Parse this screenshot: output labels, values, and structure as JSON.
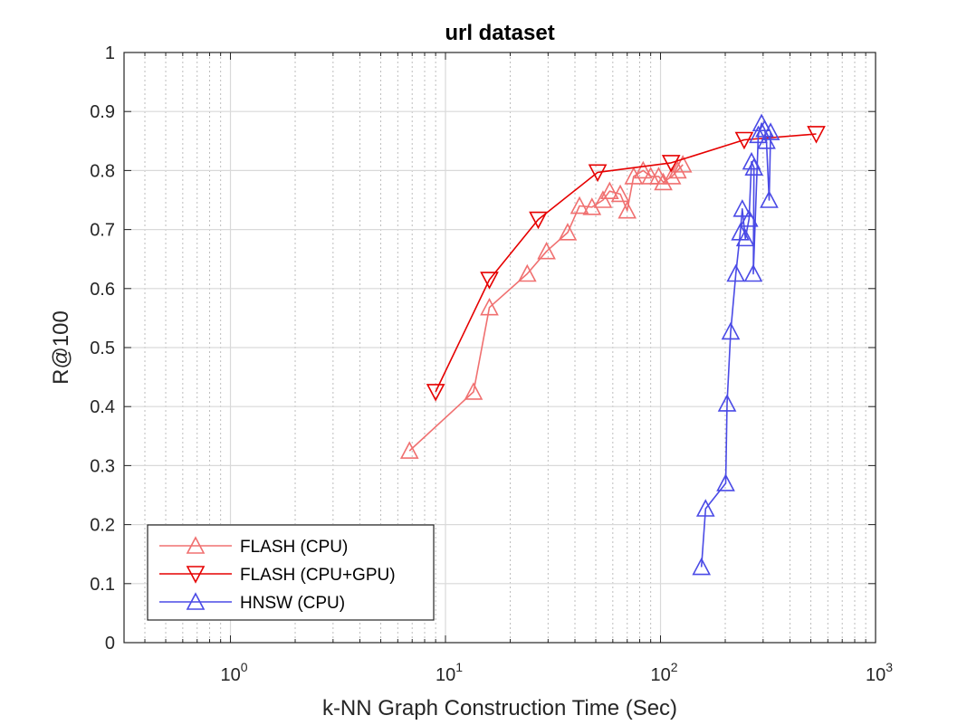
{
  "chart_data": {
    "type": "line",
    "title": "url dataset",
    "xlabel": "k-NN Graph Construction Time (Sec)",
    "ylabel": "R@100",
    "x_scale": "log",
    "xlim": [
      0.32,
      1000
    ],
    "ylim": [
      0,
      1
    ],
    "grid": true,
    "legend_position": "bottom-left",
    "x_ticks": [
      {
        "value": 1,
        "base": "10",
        "exp": "0"
      },
      {
        "value": 10,
        "base": "10",
        "exp": "1"
      },
      {
        "value": 100,
        "base": "10",
        "exp": "2"
      },
      {
        "value": 1000,
        "base": "10",
        "exp": "3"
      }
    ],
    "y_ticks": [
      {
        "value": 0,
        "label": "0"
      },
      {
        "value": 0.1,
        "label": "0.1"
      },
      {
        "value": 0.2,
        "label": "0.2"
      },
      {
        "value": 0.3,
        "label": "0.3"
      },
      {
        "value": 0.4,
        "label": "0.4"
      },
      {
        "value": 0.5,
        "label": "0.5"
      },
      {
        "value": 0.6,
        "label": "0.6"
      },
      {
        "value": 0.7,
        "label": "0.7"
      },
      {
        "value": 0.8,
        "label": "0.8"
      },
      {
        "value": 0.9,
        "label": "0.9"
      },
      {
        "value": 1,
        "label": "1"
      }
    ],
    "series": [
      {
        "name": "FLASH (CPU)",
        "color": "#f07070",
        "marker": "triangle-up",
        "points": [
          [
            6.8,
            0.325
          ],
          [
            13.5,
            0.425
          ],
          [
            16.0,
            0.568
          ],
          [
            24.0,
            0.625
          ],
          [
            29.5,
            0.663
          ],
          [
            37.0,
            0.695
          ],
          [
            42.0,
            0.74
          ],
          [
            48.0,
            0.738
          ],
          [
            54.0,
            0.75
          ],
          [
            58.0,
            0.765
          ],
          [
            65.0,
            0.76
          ],
          [
            70.0,
            0.732
          ],
          [
            75.0,
            0.79
          ],
          [
            83.0,
            0.8
          ],
          [
            90.0,
            0.79
          ],
          [
            98.0,
            0.79
          ],
          [
            103.0,
            0.78
          ],
          [
            113.0,
            0.79
          ],
          [
            120.0,
            0.8
          ],
          [
            127.0,
            0.81
          ]
        ]
      },
      {
        "name": "FLASH (CPU+GPU)",
        "color": "#e60000",
        "marker": "triangle-down",
        "points": [
          [
            9.0,
            0.425
          ],
          [
            16.0,
            0.615
          ],
          [
            27.0,
            0.717
          ],
          [
            51.0,
            0.797
          ],
          [
            112.0,
            0.813
          ],
          [
            245.0,
            0.852
          ],
          [
            530.0,
            0.862
          ]
        ]
      },
      {
        "name": "HNSW (CPU)",
        "color": "#4a4ae6",
        "marker": "triangle-up",
        "points": [
          [
            155.0,
            0.128
          ],
          [
            162.0,
            0.227
          ],
          [
            201.0,
            0.27
          ],
          [
            204.0,
            0.405
          ],
          [
            212.0,
            0.527
          ],
          [
            224.0,
            0.625
          ],
          [
            235.0,
            0.695
          ],
          [
            240.0,
            0.735
          ],
          [
            248.0,
            0.685
          ],
          [
            258.0,
            0.718
          ],
          [
            265.0,
            0.815
          ],
          [
            272.0,
            0.805
          ],
          [
            270.0,
            0.625
          ],
          [
            285.0,
            0.86
          ],
          [
            295.0,
            0.88
          ],
          [
            305.0,
            0.87
          ],
          [
            311.0,
            0.85
          ],
          [
            320.0,
            0.75
          ],
          [
            325.0,
            0.865
          ]
        ]
      }
    ]
  }
}
